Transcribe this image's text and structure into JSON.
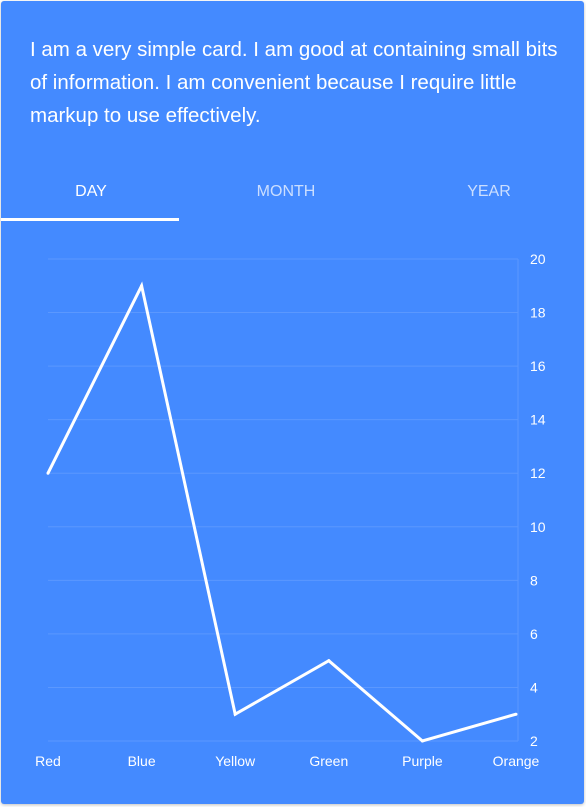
{
  "card": {
    "text": "I am a very simple card. I am good at containing small bits of information. I am convenient because I require little markup to use effectively."
  },
  "tabs": [
    {
      "label": "Day",
      "active": true
    },
    {
      "label": "Month",
      "active": false
    },
    {
      "label": "Year",
      "active": false
    }
  ],
  "colors": {
    "card_background": "#448aff",
    "line": "#ffffff",
    "grid": "#5b98ff"
  },
  "chart_data": {
    "type": "line",
    "categories": [
      "Red",
      "Blue",
      "Yellow",
      "Green",
      "Purple",
      "Orange"
    ],
    "series": [
      {
        "values": [
          12,
          19,
          3,
          5,
          2,
          3
        ]
      }
    ],
    "yticks": [
      "20",
      "18",
      "16",
      "14",
      "12",
      "10",
      "8",
      "6",
      "4",
      "2"
    ],
    "ylim": [
      2,
      20
    ],
    "y_axis_position": "right",
    "grid": true,
    "legend": "none"
  }
}
